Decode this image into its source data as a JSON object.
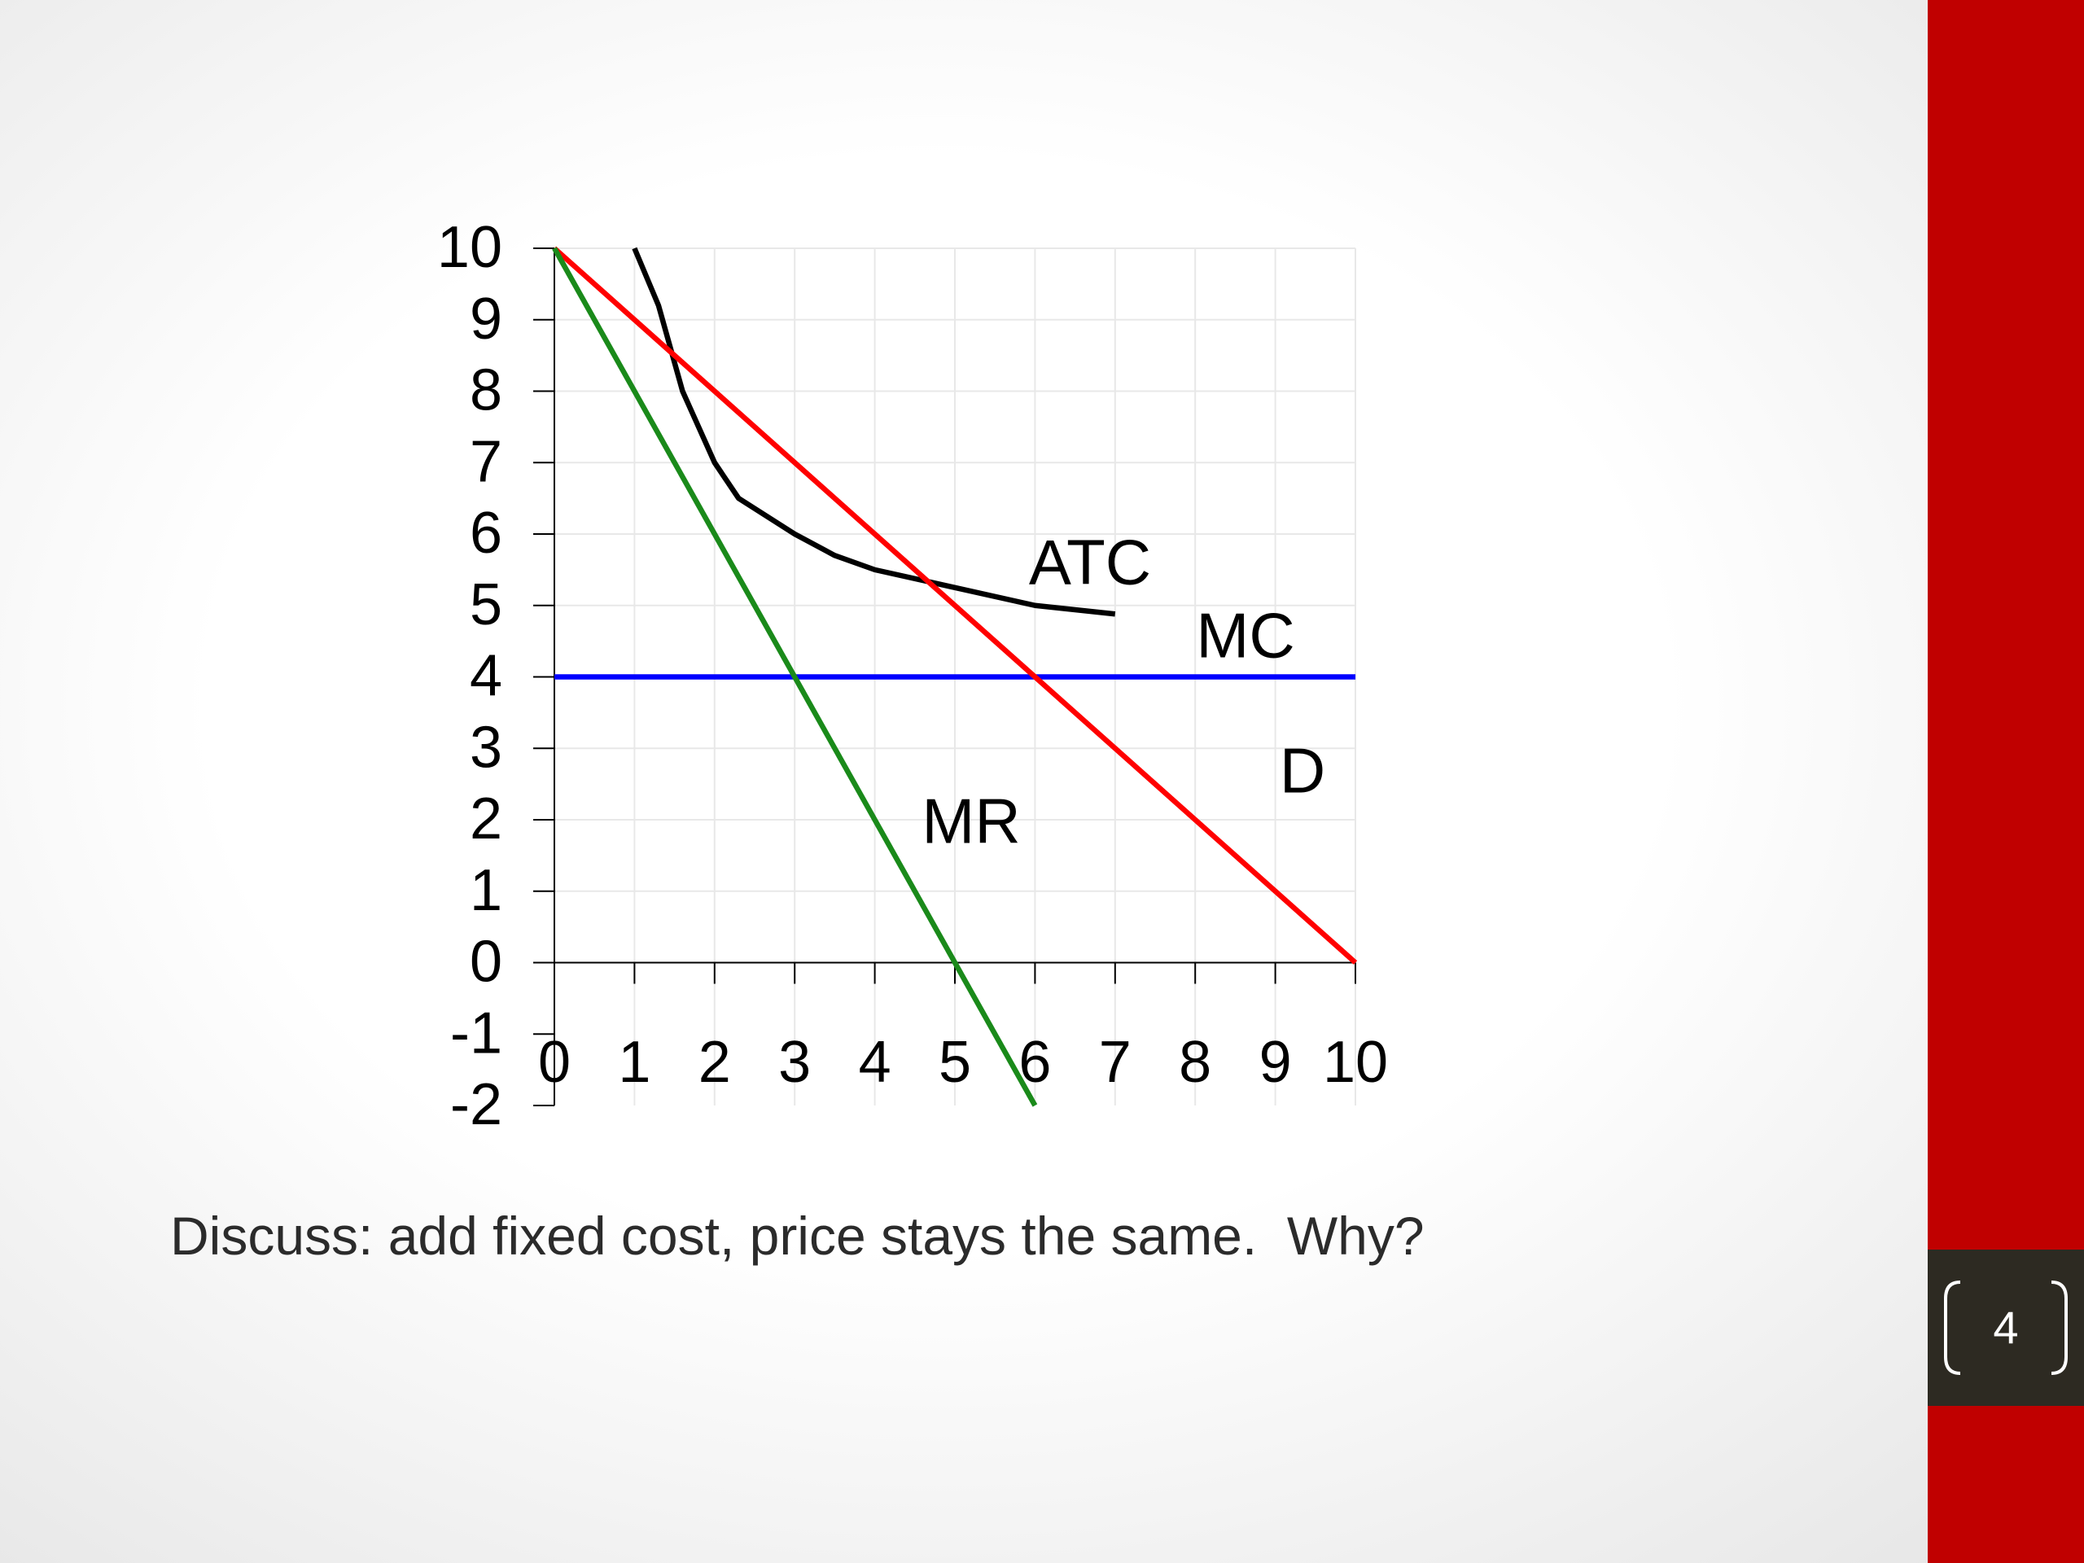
{
  "chart_data": {
    "type": "line",
    "xlim": [
      0,
      10
    ],
    "ylim": [
      -2,
      10
    ],
    "xticks": [
      0,
      1,
      2,
      3,
      4,
      5,
      6,
      7,
      8,
      9,
      10
    ],
    "yticks": [
      -2,
      -1,
      0,
      1,
      2,
      3,
      4,
      5,
      6,
      7,
      8,
      9,
      10
    ],
    "grid": true,
    "series": [
      {
        "name": "ATC",
        "color": "#000000",
        "x": [
          1,
          1.3,
          1.6,
          2,
          2.3,
          3,
          3.5,
          4,
          5,
          6,
          7
        ],
        "values": [
          10,
          9.2,
          8,
          7,
          6.5,
          6,
          5.7,
          5.5,
          5.25,
          5,
          4.88
        ]
      },
      {
        "name": "MC",
        "color": "#0000ff",
        "x": [
          0,
          10
        ],
        "values": [
          4,
          4
        ]
      },
      {
        "name": "D",
        "color": "#ff0000",
        "x": [
          0,
          10
        ],
        "values": [
          10,
          0
        ]
      },
      {
        "name": "MR",
        "color": "#1a8a1a",
        "x": [
          0,
          6
        ],
        "values": [
          10,
          -2
        ]
      }
    ]
  },
  "caption": "Discuss: add fixed cost, price stays the same.  Why?",
  "slide_number": "4"
}
